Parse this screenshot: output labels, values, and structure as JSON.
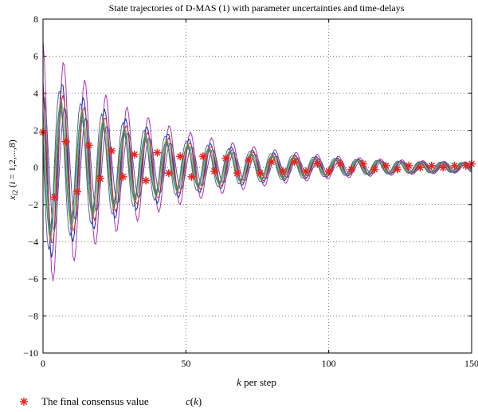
{
  "chart_data": {
    "type": "line",
    "title": "State trajectories of D-MAS (1) with parameter uncertainties and time-delays",
    "xlabel": "k per step",
    "ylabel": "x_i2 (i = 1,2,...,8)",
    "xlim": [
      0,
      150
    ],
    "ylim": [
      -10,
      8
    ],
    "xticks": [
      0,
      50,
      100,
      150
    ],
    "yticks": [
      8,
      6,
      4,
      2,
      0,
      -2,
      -4,
      -6,
      -8,
      -10
    ],
    "xtick_labels": [
      "0",
      "50",
      "100",
      "150"
    ],
    "ytick_labels": [
      "8",
      "6",
      "4",
      "2",
      "0",
      "−2",
      "−4",
      "−6",
      "−8",
      "−10"
    ],
    "grid": true,
    "legend_position": "bottom-left",
    "series": [
      {
        "name": "",
        "color": "#b02fb6",
        "amp0": 7.2,
        "phase": 0.15
      },
      {
        "name": "",
        "color": "#0a2aa6",
        "amp0": 5.6,
        "phase": 0.55
      },
      {
        "name": "",
        "color": "#e02020",
        "amp0": 4.8,
        "phase": 0.35
      },
      {
        "name": "",
        "color": "#22b0c8",
        "amp0": 4.2,
        "phase": 0.75
      },
      {
        "name": "",
        "color": "#c9c21a",
        "amp0": 4.5,
        "phase": 0.95
      },
      {
        "name": "",
        "color": "#2f8f3a",
        "amp0": 3.8,
        "phase": 1.15
      },
      {
        "name": "",
        "color": "#5a5ab8",
        "amp0": 5.0,
        "phase": 1.35
      },
      {
        "name": "",
        "color": "#3b5fa0",
        "amp0": 4.0,
        "phase": -0.2
      }
    ],
    "consensus": {
      "name": "The final consensus value c(k)",
      "color": "#e8231c",
      "x": [
        0,
        4,
        8,
        12,
        16,
        20,
        24,
        28,
        32,
        36,
        40,
        44,
        48,
        52,
        56,
        60,
        64,
        68,
        72,
        76,
        80,
        84,
        88,
        92,
        96,
        100,
        104,
        108,
        112,
        116,
        120,
        124,
        128,
        132,
        136,
        140,
        144,
        148,
        150
      ],
      "y": [
        1.9,
        -1.6,
        1.4,
        -1.3,
        1.2,
        -0.6,
        0.9,
        -0.5,
        0.7,
        -0.7,
        0.8,
        -0.3,
        0.6,
        -0.5,
        0.6,
        -0.2,
        0.5,
        -0.3,
        0.4,
        -0.3,
        0.3,
        -0.2,
        0.3,
        -0.2,
        0.2,
        -0.2,
        0.2,
        -0.1,
        0.2,
        -0.1,
        0.1,
        -0.1,
        0.1,
        0.0,
        0.1,
        0.0,
        0.1,
        0.1,
        0.2
      ]
    }
  },
  "legend": {
    "marker": "*",
    "label": "The  final consensus value",
    "symbol": "c(k)"
  }
}
